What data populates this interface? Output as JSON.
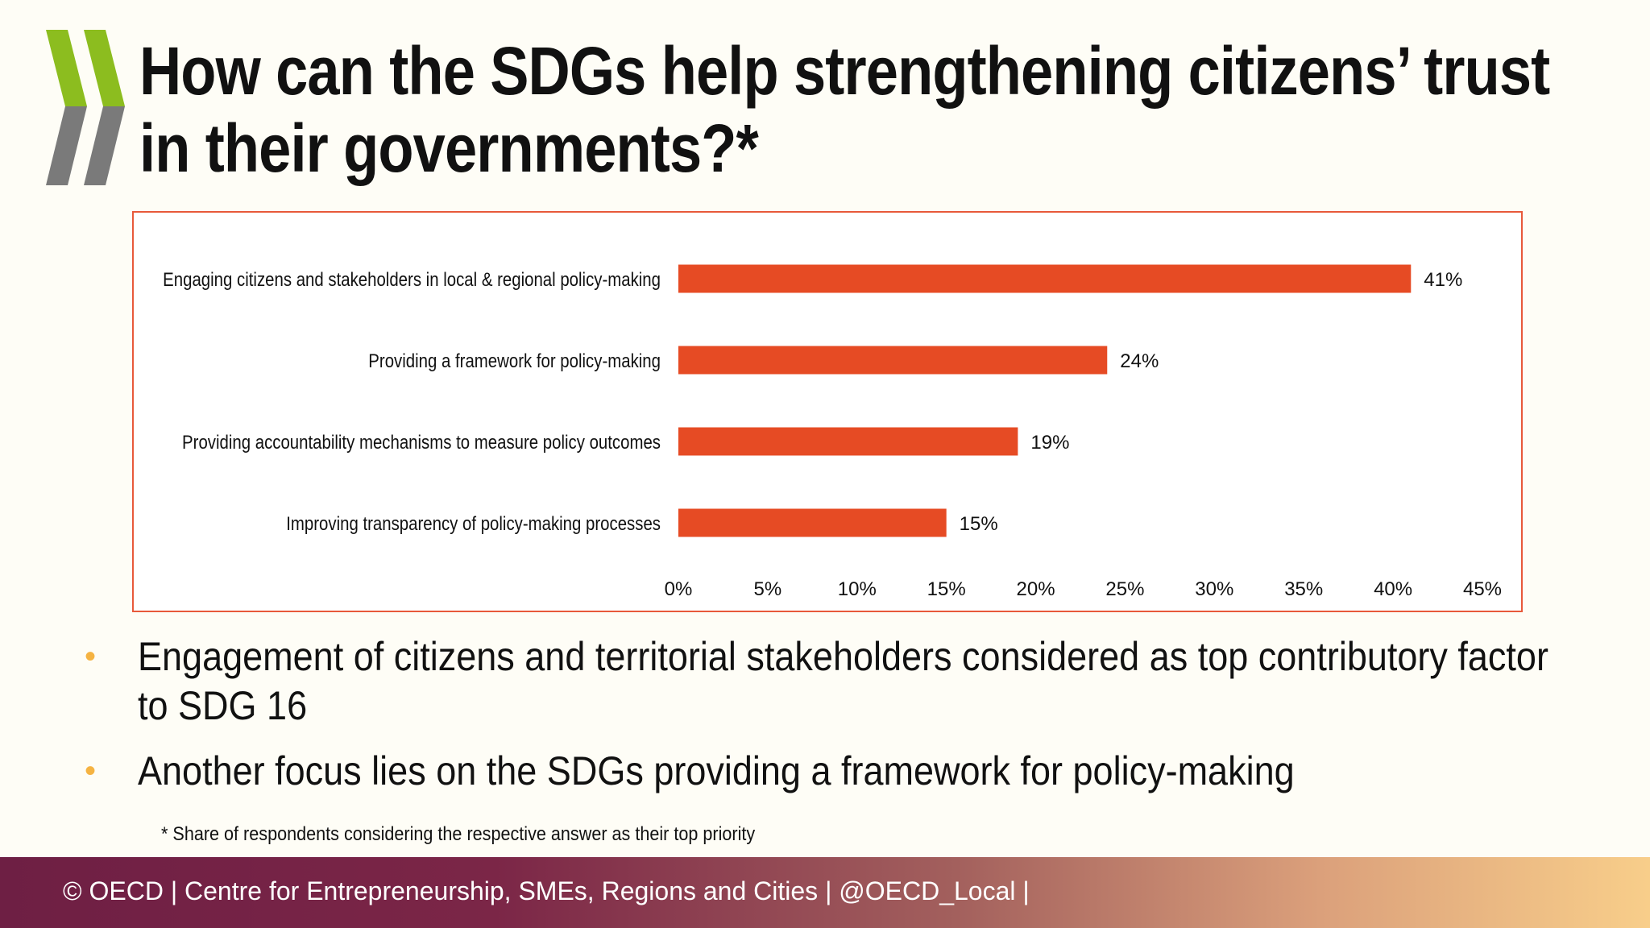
{
  "slide": {
    "title_lines": [
      "How can the SDGs help strengthening citizens’ trust",
      "in their governments?*"
    ],
    "bullets": [
      "Engagement of citizens and territorial stakeholders considered as top contributory factor to SDG 16",
      "Another focus lies on the SDGs providing a framework for policy-making"
    ],
    "bullet_marker": "•",
    "footnote": "* Share of respondents considering the respective answer as their top priority",
    "footer": "© OECD | Centre for Entrepreneurship, SMEs, Regions and Cities | @OECD_Local |",
    "logo_icon": "oecd-chevrons-icon",
    "colors": {
      "bar": "#e64b24",
      "frame": "#e8593a",
      "bullet": "#f5b342",
      "logo_green": "#8cbd1f",
      "logo_gray": "#7a7a7a"
    }
  },
  "chart_data": {
    "type": "bar",
    "orientation": "horizontal",
    "categories": [
      "Engaging citizens and stakeholders in local & regional policy-making",
      "Providing a framework for policy-making",
      "Providing accountability mechanisms to measure policy outcomes",
      "Improving transparency of policy-making processes"
    ],
    "values": [
      41,
      24,
      19,
      15
    ],
    "value_labels": [
      "41%",
      "24%",
      "19%",
      "15%"
    ],
    "xlim": [
      0,
      45
    ],
    "xticks": [
      0,
      5,
      10,
      15,
      20,
      25,
      30,
      35,
      40,
      45
    ],
    "xtick_labels": [
      "0%",
      "5%",
      "10%",
      "15%",
      "20%",
      "25%",
      "30%",
      "35%",
      "40%",
      "45%"
    ],
    "grid": false,
    "legend": "none"
  }
}
